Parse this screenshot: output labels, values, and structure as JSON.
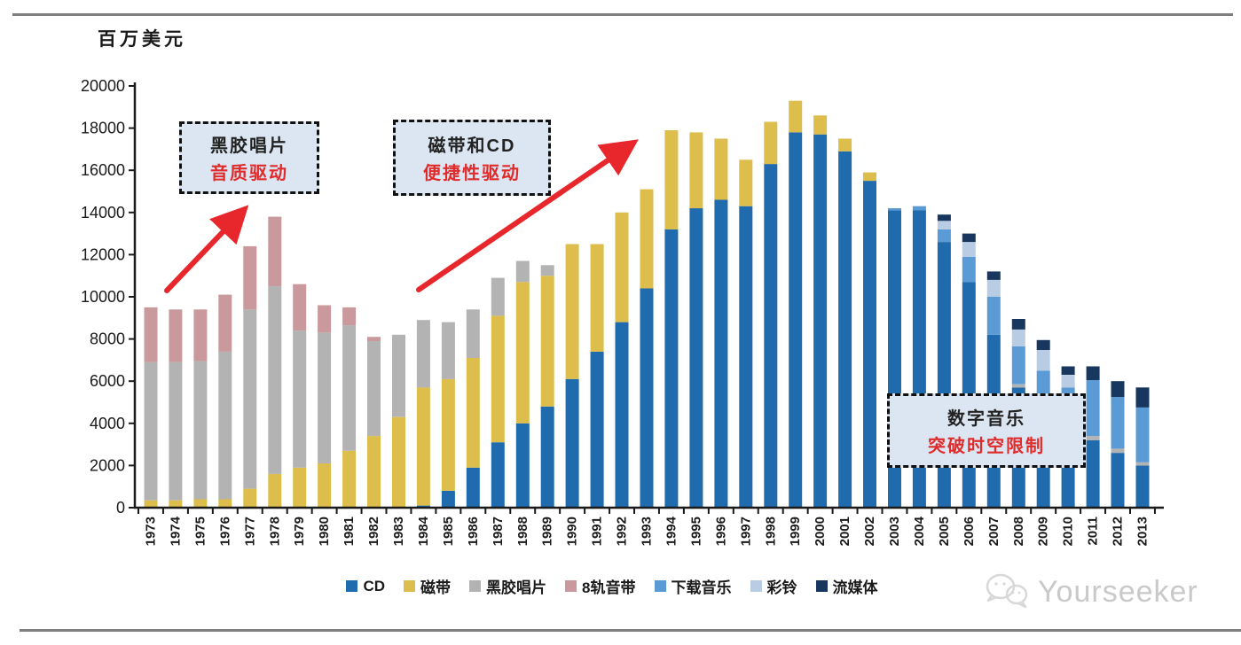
{
  "page": {
    "unit_label": "百万美元",
    "watermark_text": "Yourseeker"
  },
  "annotations": [
    {
      "line1": "黑胶唱片",
      "line2": "音质驱动"
    },
    {
      "line1": "磁带和CD",
      "line2": "便捷性驱动"
    },
    {
      "line1": "数字音乐",
      "line2": "突破时空限制"
    }
  ],
  "colors": {
    "annotation_box_fill": "#dce6f2",
    "annotation_red": "#e02b2b",
    "arrow_red": "#e8272c",
    "axis": "#1a1a1a",
    "watermark_gray": "#c9c9c9"
  },
  "chart_data": {
    "type": "bar",
    "stacked": true,
    "title": "",
    "ylabel": "百万美元",
    "xlabel": "",
    "ylim": [
      0,
      20000
    ],
    "ytick_step": 2000,
    "grid": false,
    "legend_position": "bottom",
    "categories": [
      1973,
      1974,
      1975,
      1976,
      1977,
      1978,
      1979,
      1980,
      1981,
      1982,
      1983,
      1984,
      1985,
      1986,
      1987,
      1988,
      1989,
      1990,
      1991,
      1992,
      1993,
      1994,
      1995,
      1996,
      1997,
      1998,
      1999,
      2000,
      2001,
      2002,
      2003,
      2004,
      2005,
      2006,
      2007,
      2008,
      2009,
      2010,
      2011,
      2012,
      2013
    ],
    "series": [
      {
        "name": "CD",
        "color": "#1F6BAE",
        "values": [
          0,
          0,
          0,
          0,
          0,
          0,
          0,
          0,
          0,
          0,
          0,
          100,
          800,
          1900,
          3100,
          4000,
          4800,
          6100,
          7400,
          8800,
          10400,
          13200,
          14200,
          14600,
          14300,
          16300,
          17800,
          17700,
          16900,
          15500,
          14100,
          14100,
          12600,
          10700,
          8200,
          5700,
          4400,
          3600,
          3200,
          2600,
          2000
        ]
      },
      {
        "name": "磁带",
        "color": "#DDBE4C",
        "values": [
          350,
          350,
          400,
          400,
          900,
          1600,
          1900,
          2100,
          2700,
          3400,
          4300,
          5600,
          5300,
          5200,
          6000,
          6700,
          6200,
          6400,
          5100,
          5200,
          4700,
          4700,
          3600,
          2900,
          2200,
          2000,
          1500,
          900,
          600,
          400,
          0,
          0,
          0,
          0,
          0,
          0,
          0,
          0,
          0,
          0,
          0
        ]
      },
      {
        "name": "黑胶唱片",
        "color": "#B3B3B3",
        "values": [
          6550,
          6550,
          6550,
          7000,
          8500,
          8900,
          6500,
          6200,
          5950,
          4500,
          3900,
          3200,
          2700,
          2300,
          1800,
          1000,
          500,
          0,
          0,
          0,
          0,
          0,
          0,
          0,
          0,
          0,
          0,
          0,
          0,
          0,
          0,
          0,
          0,
          0,
          0,
          150,
          150,
          150,
          200,
          200,
          150
        ]
      },
      {
        "name": "8轨音带",
        "color": "#C9999D",
        "values": [
          2600,
          2500,
          2450,
          2700,
          3000,
          3300,
          2200,
          1300,
          850,
          200,
          0,
          0,
          0,
          0,
          0,
          0,
          0,
          0,
          0,
          0,
          0,
          0,
          0,
          0,
          0,
          0,
          0,
          0,
          0,
          0,
          0,
          0,
          0,
          0,
          0,
          0,
          0,
          0,
          0,
          0,
          0
        ]
      },
      {
        "name": "下载音乐",
        "color": "#5B9BD5",
        "values": [
          0,
          0,
          0,
          0,
          0,
          0,
          0,
          0,
          0,
          0,
          0,
          0,
          0,
          0,
          0,
          0,
          0,
          0,
          0,
          0,
          0,
          0,
          0,
          0,
          0,
          0,
          0,
          0,
          0,
          0,
          100,
          200,
          600,
          1200,
          1800,
          1800,
          1950,
          1950,
          2650,
          2450,
          2600
        ]
      },
      {
        "name": "彩铃",
        "color": "#B8CCE4",
        "values": [
          0,
          0,
          0,
          0,
          0,
          0,
          0,
          0,
          0,
          0,
          0,
          0,
          0,
          0,
          0,
          0,
          0,
          0,
          0,
          0,
          0,
          0,
          0,
          0,
          0,
          0,
          0,
          0,
          0,
          0,
          0,
          0,
          400,
          700,
          800,
          800,
          980,
          600,
          0,
          0,
          0
        ]
      },
      {
        "name": "流媒体",
        "color": "#17375E",
        "values": [
          0,
          0,
          0,
          0,
          0,
          0,
          0,
          0,
          0,
          0,
          0,
          0,
          0,
          0,
          0,
          0,
          0,
          0,
          0,
          0,
          0,
          0,
          0,
          0,
          0,
          0,
          0,
          0,
          0,
          0,
          0,
          0,
          300,
          400,
          400,
          500,
          470,
          400,
          650,
          750,
          950
        ]
      }
    ]
  }
}
